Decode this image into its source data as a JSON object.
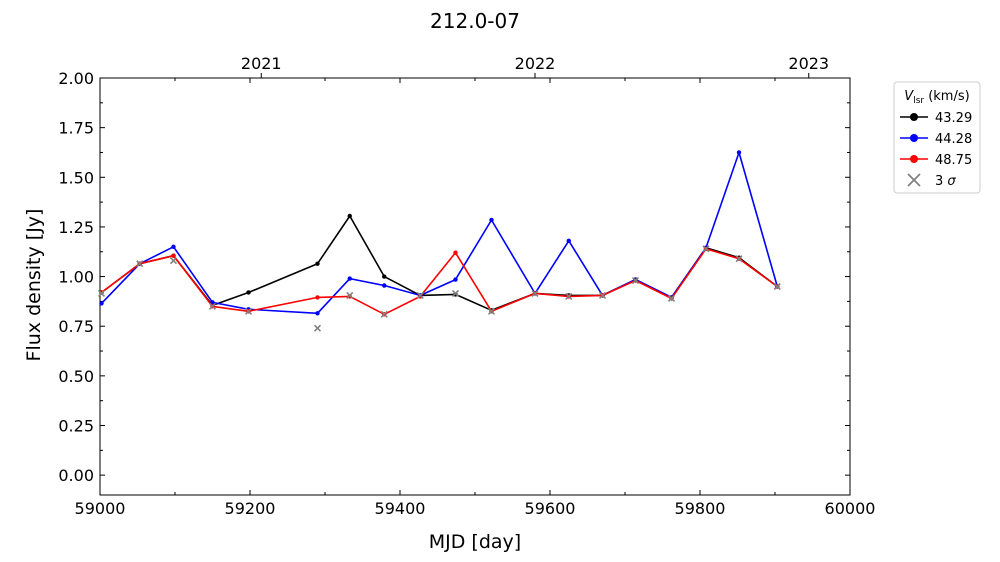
{
  "chart_data": {
    "type": "line",
    "title": "212.0-07",
    "xlabel": "MJD [day]",
    "ylabel": "Flux density [Jy]",
    "xlim": [
      59000,
      60000
    ],
    "ylim": [
      -0.1,
      2.0
    ],
    "x_ticks": [
      "59000",
      "59200",
      "59400",
      "59600",
      "59800",
      "60000"
    ],
    "y_ticks": [
      "0.00",
      "0.25",
      "0.50",
      "0.75",
      "1.00",
      "1.25",
      "1.50",
      "1.75",
      "2.00"
    ],
    "top_axis_ticks": [
      {
        "label": "2021",
        "mjd": 59215
      },
      {
        "label": "2022",
        "mjd": 59580
      },
      {
        "label": "2023",
        "mjd": 59945
      }
    ],
    "legend": {
      "title_main": "V",
      "title_sub": "lsr",
      "title_units": "(km/s)",
      "placement": "outside upper right"
    },
    "series": [
      {
        "name": "43.29",
        "color": "#000000",
        "points": [
          [
            59002,
            0.92
          ],
          [
            59053,
            1.065
          ],
          [
            59098,
            1.105
          ],
          [
            59150,
            0.855
          ],
          [
            59198,
            0.92
          ],
          [
            59290,
            1.065
          ],
          [
            59333,
            1.305
          ],
          [
            59379,
            1.0
          ],
          [
            59427,
            0.905
          ],
          [
            59474,
            0.91
          ],
          [
            59522,
            0.83
          ],
          [
            59580,
            0.915
          ],
          [
            59625,
            0.905
          ],
          [
            59670,
            0.905
          ],
          [
            59714,
            0.985
          ],
          [
            59762,
            0.895
          ],
          [
            59808,
            1.145
          ],
          [
            59852,
            1.095
          ],
          [
            59903,
            0.95
          ]
        ]
      },
      {
        "name": "44.28",
        "color": "#0000ff",
        "points": [
          [
            59002,
            0.865
          ],
          [
            59053,
            1.065
          ],
          [
            59098,
            1.15
          ],
          [
            59150,
            0.87
          ],
          [
            59198,
            0.835
          ],
          [
            59290,
            0.815
          ],
          [
            59333,
            0.99
          ],
          [
            59379,
            0.955
          ],
          [
            59427,
            0.905
          ],
          [
            59474,
            0.985
          ],
          [
            59522,
            1.285
          ],
          [
            59580,
            0.915
          ],
          [
            59625,
            1.18
          ],
          [
            59670,
            0.905
          ],
          [
            59714,
            0.985
          ],
          [
            59762,
            0.895
          ],
          [
            59808,
            1.145
          ],
          [
            59852,
            1.625
          ],
          [
            59903,
            0.95
          ]
        ]
      },
      {
        "name": "48.75",
        "color": "#ff0000",
        "points": [
          [
            59002,
            0.92
          ],
          [
            59053,
            1.065
          ],
          [
            59098,
            1.105
          ],
          [
            59150,
            0.85
          ],
          [
            59198,
            0.825
          ],
          [
            59290,
            0.895
          ],
          [
            59333,
            0.9
          ],
          [
            59379,
            0.81
          ],
          [
            59427,
            0.9
          ],
          [
            59474,
            1.12
          ],
          [
            59522,
            0.825
          ],
          [
            59580,
            0.915
          ],
          [
            59625,
            0.9
          ],
          [
            59670,
            0.905
          ],
          [
            59714,
            0.98
          ],
          [
            59762,
            0.89
          ],
          [
            59808,
            1.14
          ],
          [
            59852,
            1.09
          ],
          [
            59903,
            0.95
          ]
        ]
      }
    ],
    "upper_limits": {
      "name": "3",
      "sigma_symbol": "σ",
      "color": "#808080",
      "points": [
        [
          59002,
          0.915
        ],
        [
          59053,
          1.065
        ],
        [
          59098,
          1.08
        ],
        [
          59150,
          0.85
        ],
        [
          59198,
          0.825
        ],
        [
          59290,
          0.74
        ],
        [
          59333,
          0.905
        ],
        [
          59379,
          0.81
        ],
        [
          59427,
          0.905
        ],
        [
          59474,
          0.915
        ],
        [
          59522,
          0.825
        ],
        [
          59580,
          0.915
        ],
        [
          59625,
          0.9
        ],
        [
          59670,
          0.905
        ],
        [
          59714,
          0.98
        ],
        [
          59762,
          0.89
        ],
        [
          59808,
          1.14
        ],
        [
          59852,
          1.09
        ],
        [
          59903,
          0.95
        ]
      ]
    }
  }
}
